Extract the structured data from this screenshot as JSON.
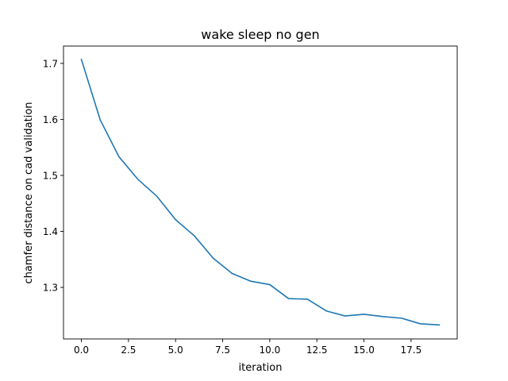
{
  "chart_data": {
    "type": "line",
    "title": "wake sleep no gen",
    "xlabel": "iteration",
    "ylabel": "chamfer distance on cad validation",
    "xlim": [
      -0.95,
      19.95
    ],
    "ylim": [
      1.208,
      1.731
    ],
    "xticks": [
      0,
      2.5,
      5,
      7.5,
      10,
      12.5,
      15,
      17.5
    ],
    "xtick_labels": [
      "0.0",
      "2.5",
      "5.0",
      "7.5",
      "10.0",
      "12.5",
      "15.0",
      "17.5"
    ],
    "yticks": [
      1.3,
      1.4,
      1.5,
      1.6,
      1.7
    ],
    "ytick_labels": [
      "1.3",
      "1.4",
      "1.5",
      "1.6",
      "1.7"
    ],
    "grid": false,
    "series": [
      {
        "name": "chamfer distance",
        "color": "#1f77b4",
        "x": [
          0,
          1,
          2,
          3,
          4,
          5,
          6,
          7,
          8,
          9,
          10,
          11,
          12,
          13,
          14,
          15,
          16,
          17,
          18,
          19
        ],
        "y": [
          1.707,
          1.599,
          1.533,
          1.493,
          1.463,
          1.421,
          1.392,
          1.352,
          1.325,
          1.311,
          1.305,
          1.28,
          1.279,
          1.258,
          1.249,
          1.252,
          1.248,
          1.245,
          1.235,
          1.233
        ]
      }
    ]
  }
}
